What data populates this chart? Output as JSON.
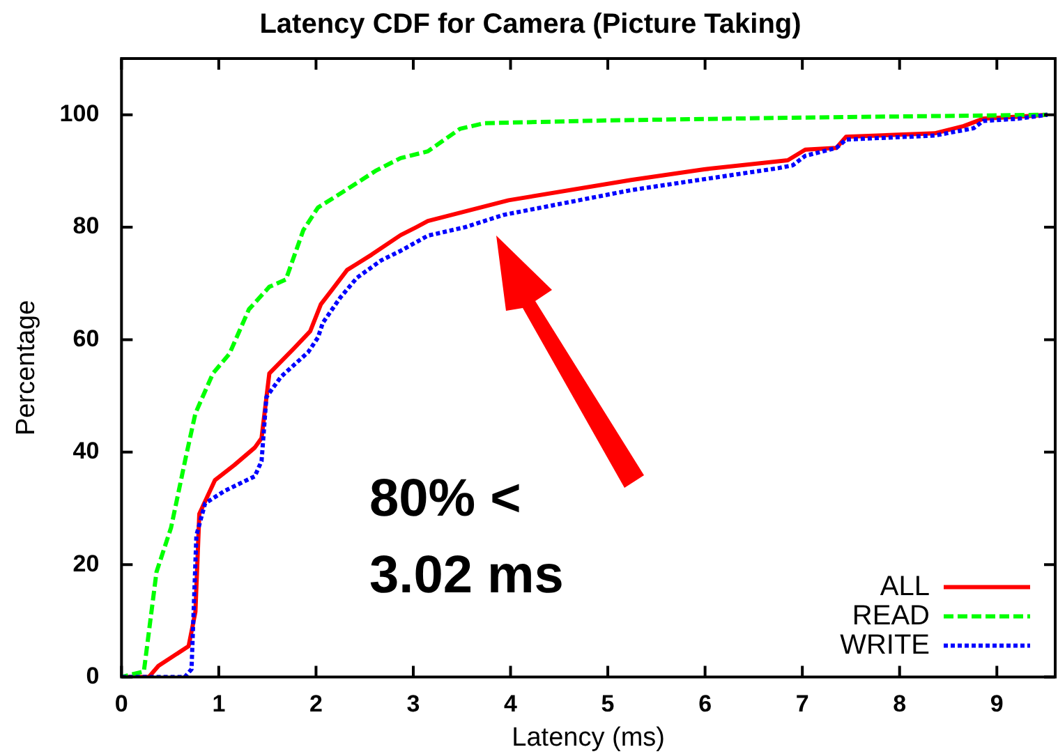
{
  "chart_data": {
    "type": "line",
    "title": "Latency CDF for Camera (Picture Taking)",
    "xlabel": "Latency (ms)",
    "ylabel": "Percentage",
    "xlim": [
      0,
      9.6
    ],
    "xticks": [
      0,
      1,
      2,
      3,
      4,
      5,
      6,
      7,
      8,
      9
    ],
    "ylim": [
      0,
      110
    ],
    "yticks": [
      0,
      20,
      40,
      60,
      80,
      100
    ],
    "grid": false,
    "legend": "bottom right",
    "marker": "none",
    "annotations": [
      "80% <\n3.02 ms"
    ],
    "series": [
      {
        "name": "ALL",
        "color": "#ff0000",
        "line_style": "solid",
        "x": [
          0,
          0.28,
          0.38,
          0.69,
          0.76,
          0.8,
          0.96,
          1.16,
          1.37,
          1.44,
          1.52,
          1.77,
          1.94,
          2.05,
          2.17,
          2.32,
          2.57,
          2.87,
          3.03,
          3.15,
          3.98,
          5.24,
          5.99,
          6.85,
          7.03,
          7.35,
          7.45,
          8.36,
          8.66,
          8.86,
          9.27,
          9.52
        ],
        "values": [
          0,
          0,
          2,
          5.5,
          11.6,
          29,
          35,
          37.7,
          40.8,
          42.5,
          54,
          58.4,
          61.5,
          66.3,
          69,
          72.4,
          75.1,
          78.6,
          80,
          81.1,
          84.8,
          88.4,
          90.3,
          91.9,
          93.8,
          94.1,
          96.1,
          96.7,
          98,
          99.3,
          99.7,
          100
        ]
      },
      {
        "name": "READ",
        "color": "#00ff00",
        "line_style": "dashed",
        "x": [
          0,
          0.23,
          0.36,
          0.51,
          0.66,
          0.76,
          0.94,
          1.11,
          1.31,
          1.52,
          1.69,
          1.87,
          2.02,
          2.27,
          2.62,
          2.87,
          3.15,
          3.48,
          3.73,
          5,
          7,
          9.52
        ],
        "values": [
          0,
          1,
          18.7,
          26.6,
          39,
          46.9,
          54,
          57.5,
          65.4,
          69.4,
          70.7,
          79.5,
          83.5,
          86.2,
          90.1,
          92.3,
          93.5,
          97.5,
          98.5,
          99,
          99.5,
          100
        ]
      },
      {
        "name": "WRITE",
        "color": "#0000ff",
        "line_style": "dotted",
        "x": [
          0,
          0.65,
          0.72,
          0.77,
          0.86,
          1.06,
          1.37,
          1.44,
          1.49,
          1.64,
          1.92,
          2.02,
          2.07,
          2.25,
          2.42,
          2.67,
          2.87,
          3.15,
          3.53,
          3.93,
          5.24,
          5.74,
          6.75,
          6.9,
          7.03,
          7.35,
          7.45,
          8.36,
          8.76,
          8.86,
          9.22,
          9.52
        ],
        "values": [
          0,
          0,
          1.4,
          25.2,
          30.9,
          33.1,
          35.7,
          38.4,
          49.8,
          53.4,
          57.8,
          60.4,
          63,
          67.5,
          71,
          74.1,
          75.8,
          78.5,
          80,
          82.2,
          86.6,
          87.9,
          90.5,
          91,
          92.7,
          94.1,
          95.6,
          96.3,
          97.6,
          98.9,
          99.3,
          100
        ]
      }
    ]
  }
}
